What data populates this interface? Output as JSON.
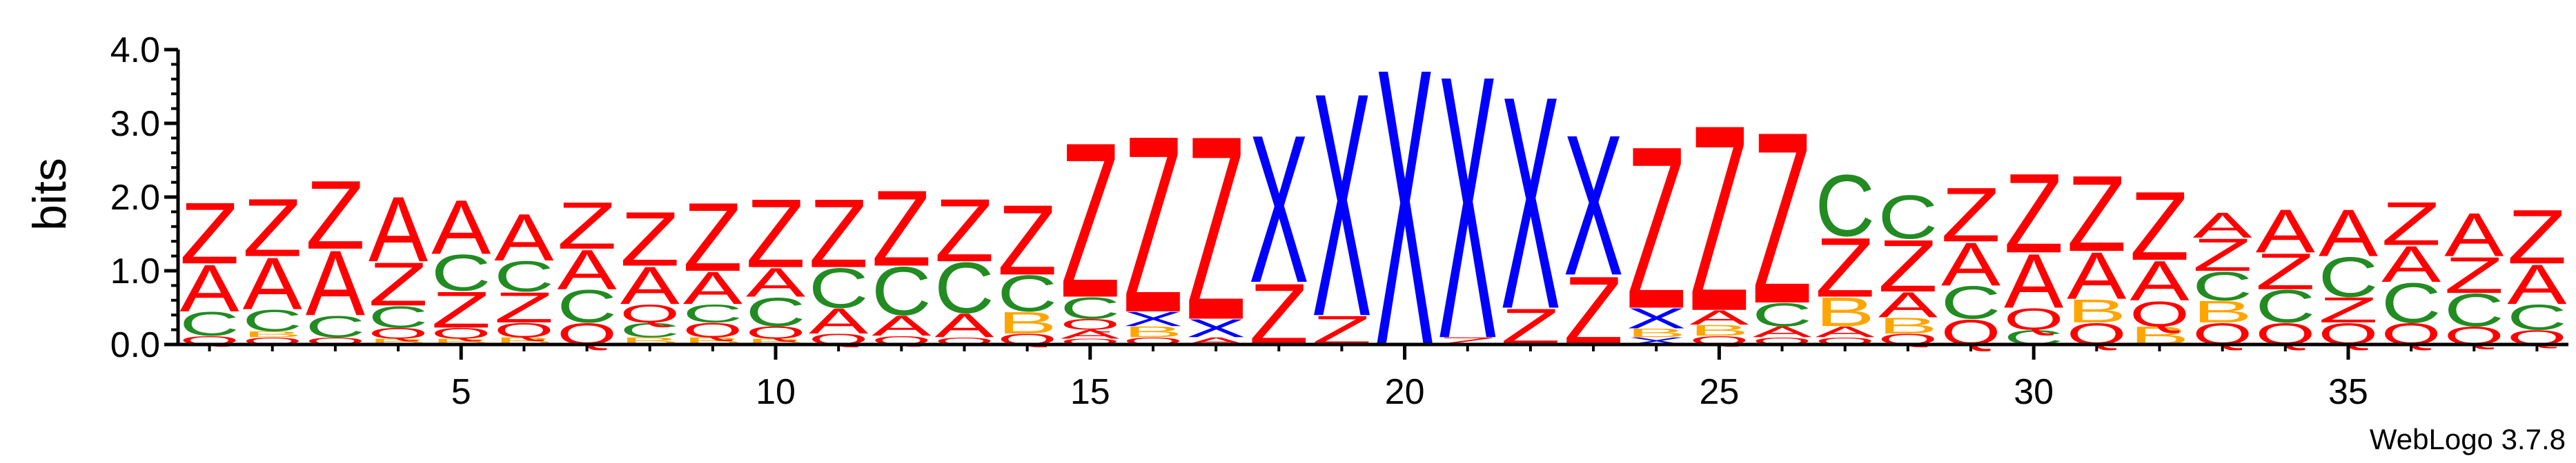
{
  "chart_data": {
    "type": "sequence_logo",
    "title": "",
    "xlabel": "",
    "ylabel": "bits",
    "ylim": [
      0,
      4.0
    ],
    "xlim": [
      0.5,
      38.5
    ],
    "y_ticks": [
      "0.0",
      "1.0",
      "2.0",
      "3.0",
      "4.0"
    ],
    "x_ticks": [
      "5",
      "10",
      "15",
      "20",
      "25",
      "30",
      "35"
    ],
    "x_tick_values": [
      5,
      10,
      15,
      20,
      25,
      30,
      35
    ],
    "colors": {
      "A": "#ff0000",
      "Z": "#ff0000",
      "C": "#228b22",
      "Q": "#ff0000",
      "B": "#ffa500",
      "X": "#0000ff"
    },
    "positions": [
      {
        "pos": 1,
        "stack": [
          [
            "Q",
            0.12
          ],
          [
            "C",
            0.33
          ],
          [
            "A",
            0.65
          ],
          [
            "Z",
            0.85
          ]
        ]
      },
      {
        "pos": 2,
        "stack": [
          [
            "Q",
            0.1
          ],
          [
            "B",
            0.08
          ],
          [
            "C",
            0.3
          ],
          [
            "A",
            0.72
          ],
          [
            "Z",
            0.8
          ]
        ]
      },
      {
        "pos": 3,
        "stack": [
          [
            "Q",
            0.1
          ],
          [
            "C",
            0.3
          ],
          [
            "A",
            0.9
          ],
          [
            "Z",
            0.95
          ]
        ]
      },
      {
        "pos": 4,
        "stack": [
          [
            "B",
            0.08
          ],
          [
            "Q",
            0.15
          ],
          [
            "C",
            0.3
          ],
          [
            "Z",
            0.6
          ],
          [
            "A",
            0.9
          ]
        ]
      },
      {
        "pos": 5,
        "stack": [
          [
            "B",
            0.08
          ],
          [
            "Q",
            0.15
          ],
          [
            "Z",
            0.5
          ],
          [
            "C",
            0.5
          ],
          [
            "A",
            0.75
          ]
        ]
      },
      {
        "pos": 6,
        "stack": [
          [
            "B",
            0.1
          ],
          [
            "Q",
            0.2
          ],
          [
            "Z",
            0.42
          ],
          [
            "C",
            0.42
          ],
          [
            "A",
            0.65
          ]
        ]
      },
      {
        "pos": 7,
        "stack": [
          [
            "Q",
            0.3
          ],
          [
            "C",
            0.45
          ],
          [
            "A",
            0.55
          ],
          [
            "Z",
            0.65
          ]
        ]
      },
      {
        "pos": 8,
        "stack": [
          [
            "B",
            0.1
          ],
          [
            "C",
            0.2
          ],
          [
            "Q",
            0.25
          ],
          [
            "A",
            0.52
          ],
          [
            "Z",
            0.75
          ]
        ]
      },
      {
        "pos": 9,
        "stack": [
          [
            "B",
            0.1
          ],
          [
            "Q",
            0.2
          ],
          [
            "C",
            0.25
          ],
          [
            "A",
            0.45
          ],
          [
            "Z",
            0.95
          ]
        ]
      },
      {
        "pos": 10,
        "stack": [
          [
            "B",
            0.08
          ],
          [
            "Q",
            0.17
          ],
          [
            "C",
            0.4
          ],
          [
            "A",
            0.4
          ],
          [
            "Z",
            0.95
          ]
        ]
      },
      {
        "pos": 11,
        "stack": [
          [
            "Q",
            0.15
          ],
          [
            "A",
            0.35
          ],
          [
            "C",
            0.55
          ],
          [
            "Z",
            0.95
          ]
        ]
      },
      {
        "pos": 12,
        "stack": [
          [
            "Q",
            0.12
          ],
          [
            "A",
            0.28
          ],
          [
            "C",
            0.67
          ],
          [
            "Z",
            1.05
          ]
        ]
      },
      {
        "pos": 13,
        "stack": [
          [
            "Q",
            0.1
          ],
          [
            "A",
            0.33
          ],
          [
            "C",
            0.7
          ],
          [
            "Z",
            0.87
          ]
        ]
      },
      {
        "pos": 14,
        "stack": [
          [
            "Q",
            0.15
          ],
          [
            "B",
            0.3
          ],
          [
            "C",
            0.5
          ],
          [
            "Z",
            0.97
          ]
        ]
      },
      {
        "pos": 15,
        "stack": [
          [
            "Q",
            0.08
          ],
          [
            "A",
            0.12
          ],
          [
            "Q",
            0.15
          ],
          [
            "C",
            0.3
          ],
          [
            "Z",
            2.15
          ]
        ]
      },
      {
        "pos": 16,
        "stack": [
          [
            "Q",
            0.1
          ],
          [
            "B",
            0.15
          ],
          [
            "X",
            0.2
          ],
          [
            "Z",
            2.45
          ]
        ]
      },
      {
        "pos": 17,
        "stack": [
          [
            "A",
            0.1
          ],
          [
            "X",
            0.25
          ],
          [
            "Z",
            2.55
          ]
        ]
      },
      {
        "pos": 18,
        "stack": [
          [
            "Z",
            0.85
          ],
          [
            "X",
            2.05
          ]
        ]
      },
      {
        "pos": 19,
        "stack": [
          [
            "Z",
            0.4
          ],
          [
            "X",
            3.1
          ]
        ]
      },
      {
        "pos": 20,
        "stack": [
          [
            "X",
            3.85
          ]
        ]
      },
      {
        "pos": 21,
        "stack": [
          [
            "Z",
            0.1
          ],
          [
            "X",
            3.65
          ]
        ]
      },
      {
        "pos": 22,
        "stack": [
          [
            "Z",
            0.5
          ],
          [
            "X",
            2.95
          ]
        ]
      },
      {
        "pos": 23,
        "stack": [
          [
            "Z",
            0.95
          ],
          [
            "X",
            1.95
          ]
        ]
      },
      {
        "pos": 24,
        "stack": [
          [
            "X",
            0.1
          ],
          [
            "B",
            0.12
          ],
          [
            "X",
            0.28
          ],
          [
            "Z",
            2.25
          ]
        ]
      },
      {
        "pos": 25,
        "stack": [
          [
            "Q",
            0.12
          ],
          [
            "B",
            0.15
          ],
          [
            "A",
            0.2
          ],
          [
            "Z",
            2.58
          ]
        ]
      },
      {
        "pos": 26,
        "stack": [
          [
            "Q",
            0.1
          ],
          [
            "A",
            0.15
          ],
          [
            "C",
            0.32
          ],
          [
            "Z",
            2.38
          ]
        ]
      },
      {
        "pos": 27,
        "stack": [
          [
            "Q",
            0.1
          ],
          [
            "A",
            0.15
          ],
          [
            "B",
            0.4
          ],
          [
            "Z",
            0.82
          ],
          [
            "C",
            0.85
          ]
        ]
      },
      {
        "pos": 28,
        "stack": [
          [
            "Q",
            0.15
          ],
          [
            "B",
            0.22
          ],
          [
            "A",
            0.35
          ],
          [
            "Z",
            0.72
          ],
          [
            "C",
            0.6
          ]
        ]
      },
      {
        "pos": 29,
        "stack": [
          [
            "Q",
            0.35
          ],
          [
            "C",
            0.45
          ],
          [
            "A",
            0.6
          ],
          [
            "Z",
            0.75
          ]
        ]
      },
      {
        "pos": 30,
        "stack": [
          [
            "C",
            0.2
          ],
          [
            "Q",
            0.3
          ],
          [
            "A",
            0.75
          ],
          [
            "Z",
            1.1
          ]
        ]
      },
      {
        "pos": 31,
        "stack": [
          [
            "Q",
            0.3
          ],
          [
            "B",
            0.32
          ],
          [
            "A",
            0.65
          ],
          [
            "Z",
            1.05
          ]
        ]
      },
      {
        "pos": 32,
        "stack": [
          [
            "B",
            0.25
          ],
          [
            "Q",
            0.35
          ],
          [
            "A",
            0.55
          ],
          [
            "Z",
            0.95
          ]
        ]
      },
      {
        "pos": 33,
        "stack": [
          [
            "Q",
            0.3
          ],
          [
            "B",
            0.3
          ],
          [
            "C",
            0.4
          ],
          [
            "Z",
            0.45
          ],
          [
            "A",
            0.35
          ]
        ]
      },
      {
        "pos": 34,
        "stack": [
          [
            "Q",
            0.3
          ],
          [
            "C",
            0.45
          ],
          [
            "Z",
            0.5
          ],
          [
            "A",
            0.6
          ]
        ]
      },
      {
        "pos": 35,
        "stack": [
          [
            "Q",
            0.3
          ],
          [
            "Z",
            0.35
          ],
          [
            "C",
            0.55
          ],
          [
            "A",
            0.65
          ]
        ]
      },
      {
        "pos": 36,
        "stack": [
          [
            "Q",
            0.3
          ],
          [
            "C",
            0.55
          ],
          [
            "A",
            0.5
          ],
          [
            "Z",
            0.6
          ]
        ]
      },
      {
        "pos": 37,
        "stack": [
          [
            "Q",
            0.25
          ],
          [
            "C",
            0.45
          ],
          [
            "Z",
            0.5
          ],
          [
            "A",
            0.6
          ]
        ]
      },
      {
        "pos": 38,
        "stack": [
          [
            "Q",
            0.2
          ],
          [
            "C",
            0.35
          ],
          [
            "A",
            0.55
          ],
          [
            "Z",
            0.75
          ]
        ]
      }
    ],
    "grid": false,
    "legend": "none"
  },
  "footer": {
    "version_label": "WebLogo 3.7.8"
  }
}
